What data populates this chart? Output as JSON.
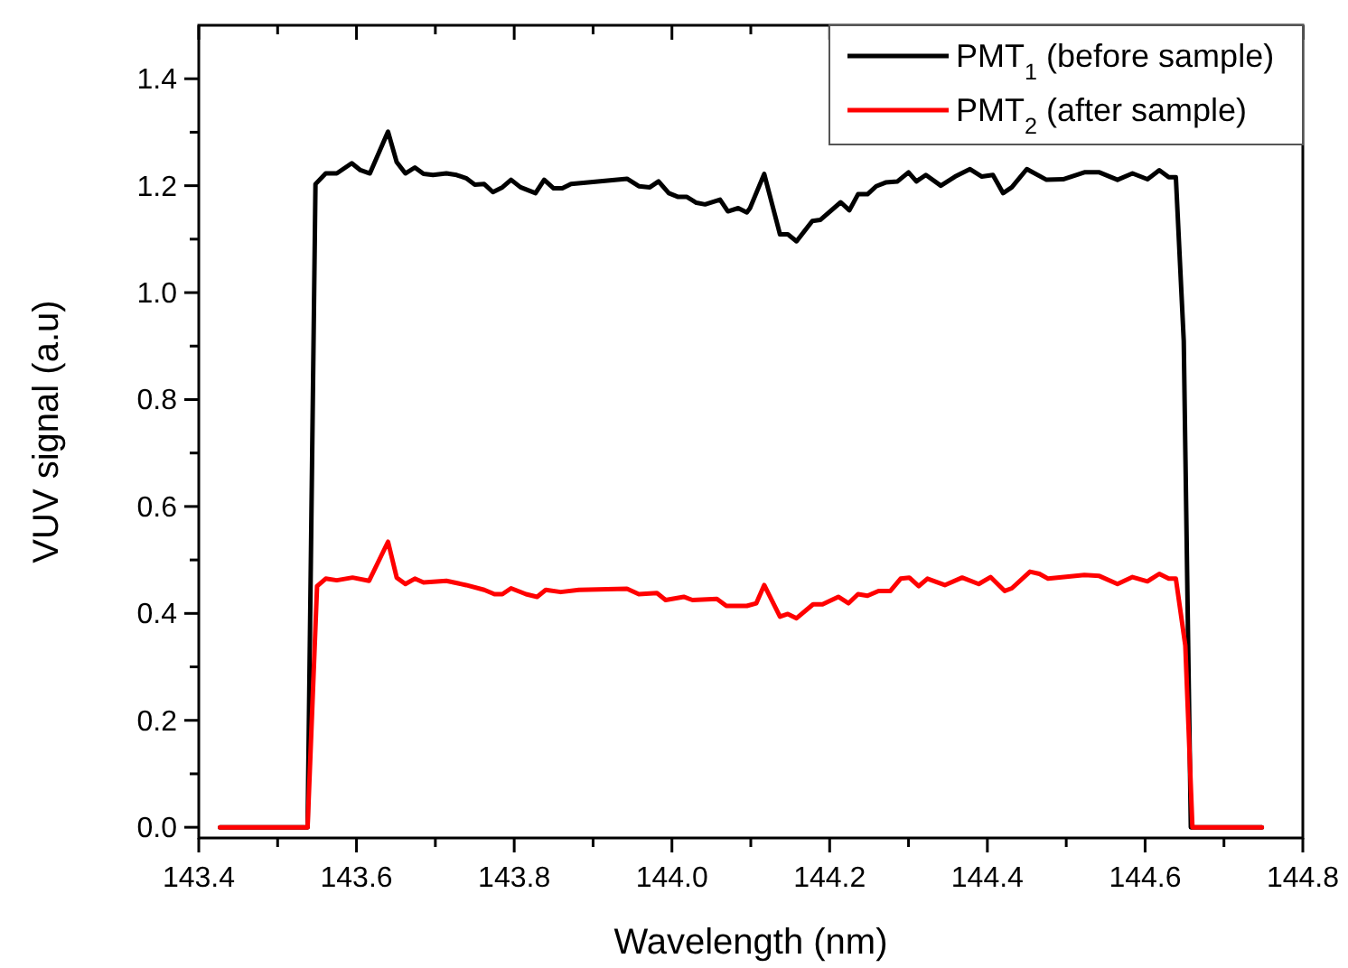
{
  "chart_data": {
    "type": "line",
    "xlabel": "Wavelength (nm)",
    "ylabel": "VUV signal (a.u)",
    "xlim": [
      143.4,
      144.8
    ],
    "ylim": [
      -0.02,
      1.5
    ],
    "xticks": [
      {
        "value": 143.4,
        "label": "143.4"
      },
      {
        "value": 143.5,
        "label": null
      },
      {
        "value": 143.6,
        "label": "143.6"
      },
      {
        "value": 143.7,
        "label": null
      },
      {
        "value": 143.8,
        "label": "143.8"
      },
      {
        "value": 143.9,
        "label": null
      },
      {
        "value": 144.0,
        "label": "144.0"
      },
      {
        "value": 144.1,
        "label": null
      },
      {
        "value": 144.2,
        "label": "144.2"
      },
      {
        "value": 144.3,
        "label": null
      },
      {
        "value": 144.4,
        "label": "144.4"
      },
      {
        "value": 144.5,
        "label": null
      },
      {
        "value": 144.6,
        "label": "144.6"
      },
      {
        "value": 144.7,
        "label": null
      },
      {
        "value": 144.8,
        "label": "144.8"
      }
    ],
    "yticks": [
      {
        "value": 0,
        "label": "0.0"
      },
      {
        "value": 0.1,
        "label": null
      },
      {
        "value": 0.2,
        "label": "0.2"
      },
      {
        "value": 0.3,
        "label": null
      },
      {
        "value": 0.4,
        "label": "0.4"
      },
      {
        "value": 0.5,
        "label": null
      },
      {
        "value": 0.6,
        "label": "0.6"
      },
      {
        "value": 0.7,
        "label": null
      },
      {
        "value": 0.8,
        "label": "0.8"
      },
      {
        "value": 0.9,
        "label": null
      },
      {
        "value": 1.0,
        "label": "1.0"
      },
      {
        "value": 1.1,
        "label": null
      },
      {
        "value": 1.2,
        "label": "1.2"
      },
      {
        "value": 1.3,
        "label": null
      },
      {
        "value": 1.4,
        "label": "1.4"
      }
    ],
    "grid": false,
    "legend": "top right",
    "marker": "none",
    "line_style": "solid",
    "series": [
      {
        "name": "PMT$_{1}$ (before sample)",
        "color": "#000000",
        "x": [
          143.427,
          143.538,
          143.548,
          143.561,
          143.575,
          143.594,
          143.605,
          143.617,
          143.64,
          143.651,
          143.662,
          143.674,
          143.685,
          143.697,
          143.714,
          143.727,
          143.739,
          143.75,
          143.762,
          143.773,
          143.785,
          143.796,
          143.808,
          143.827,
          143.838,
          143.85,
          143.861,
          143.872,
          143.943,
          143.958,
          143.972,
          143.983,
          143.996,
          144.008,
          144.019,
          144.031,
          144.042,
          144.061,
          144.071,
          144.084,
          144.095,
          144.099,
          144.117,
          144.137,
          144.147,
          144.158,
          144.178,
          144.188,
          144.214,
          144.225,
          144.236,
          144.248,
          144.259,
          144.271,
          144.286,
          144.3,
          144.31,
          144.322,
          144.341,
          144.359,
          144.378,
          144.393,
          144.407,
          144.42,
          144.431,
          144.45,
          144.475,
          144.496,
          144.523,
          144.542,
          144.565,
          144.584,
          144.603,
          144.618,
          144.63,
          144.639,
          144.649,
          144.658,
          144.748
        ],
        "values": [
          0,
          0,
          1.203,
          1.223,
          1.223,
          1.242,
          1.229,
          1.223,
          1.301,
          1.244,
          1.223,
          1.234,
          1.222,
          1.22,
          1.223,
          1.22,
          1.214,
          1.202,
          1.203,
          1.188,
          1.197,
          1.211,
          1.197,
          1.186,
          1.211,
          1.195,
          1.195,
          1.203,
          1.213,
          1.199,
          1.197,
          1.208,
          1.186,
          1.179,
          1.179,
          1.168,
          1.165,
          1.174,
          1.152,
          1.158,
          1.15,
          1.158,
          1.222,
          1.109,
          1.109,
          1.096,
          1.134,
          1.136,
          1.169,
          1.154,
          1.184,
          1.184,
          1.199,
          1.206,
          1.208,
          1.225,
          1.208,
          1.22,
          1.2,
          1.217,
          1.231,
          1.217,
          1.22,
          1.186,
          1.197,
          1.231,
          1.211,
          1.212,
          1.225,
          1.225,
          1.211,
          1.223,
          1.212,
          1.229,
          1.216,
          1.216,
          0.91,
          0,
          0
        ]
      },
      {
        "name": "PMT$_{2}$ (after sample)",
        "color": "#ff0000",
        "x": [
          143.427,
          143.538,
          143.55,
          143.561,
          143.575,
          143.595,
          143.616,
          143.64,
          143.651,
          143.662,
          143.674,
          143.685,
          143.714,
          143.739,
          143.762,
          143.775,
          143.785,
          143.796,
          143.815,
          143.829,
          143.84,
          143.859,
          143.882,
          143.943,
          143.958,
          143.981,
          143.992,
          144.015,
          144.026,
          144.057,
          144.069,
          144.095,
          144.107,
          144.117,
          144.137,
          144.147,
          144.158,
          144.179,
          144.191,
          144.211,
          144.224,
          144.236,
          144.248,
          144.262,
          144.277,
          144.29,
          144.301,
          144.313,
          144.324,
          144.346,
          144.368,
          144.389,
          144.404,
          144.422,
          144.431,
          144.454,
          144.466,
          144.477,
          144.523,
          144.542,
          144.565,
          144.584,
          144.603,
          144.618,
          144.63,
          144.639,
          144.651,
          144.66,
          144.748
        ],
        "values": [
          0,
          0,
          0.451,
          0.465,
          0.462,
          0.467,
          0.461,
          0.534,
          0.467,
          0.455,
          0.465,
          0.458,
          0.461,
          0.453,
          0.444,
          0.436,
          0.436,
          0.447,
          0.436,
          0.431,
          0.444,
          0.44,
          0.444,
          0.446,
          0.436,
          0.438,
          0.425,
          0.431,
          0.425,
          0.427,
          0.414,
          0.414,
          0.419,
          0.453,
          0.394,
          0.399,
          0.391,
          0.417,
          0.417,
          0.431,
          0.419,
          0.436,
          0.433,
          0.442,
          0.442,
          0.465,
          0.467,
          0.451,
          0.465,
          0.453,
          0.467,
          0.455,
          0.468,
          0.442,
          0.447,
          0.478,
          0.474,
          0.465,
          0.472,
          0.47,
          0.455,
          0.468,
          0.46,
          0.474,
          0.465,
          0.465,
          0.34,
          0,
          0
        ]
      }
    ]
  }
}
